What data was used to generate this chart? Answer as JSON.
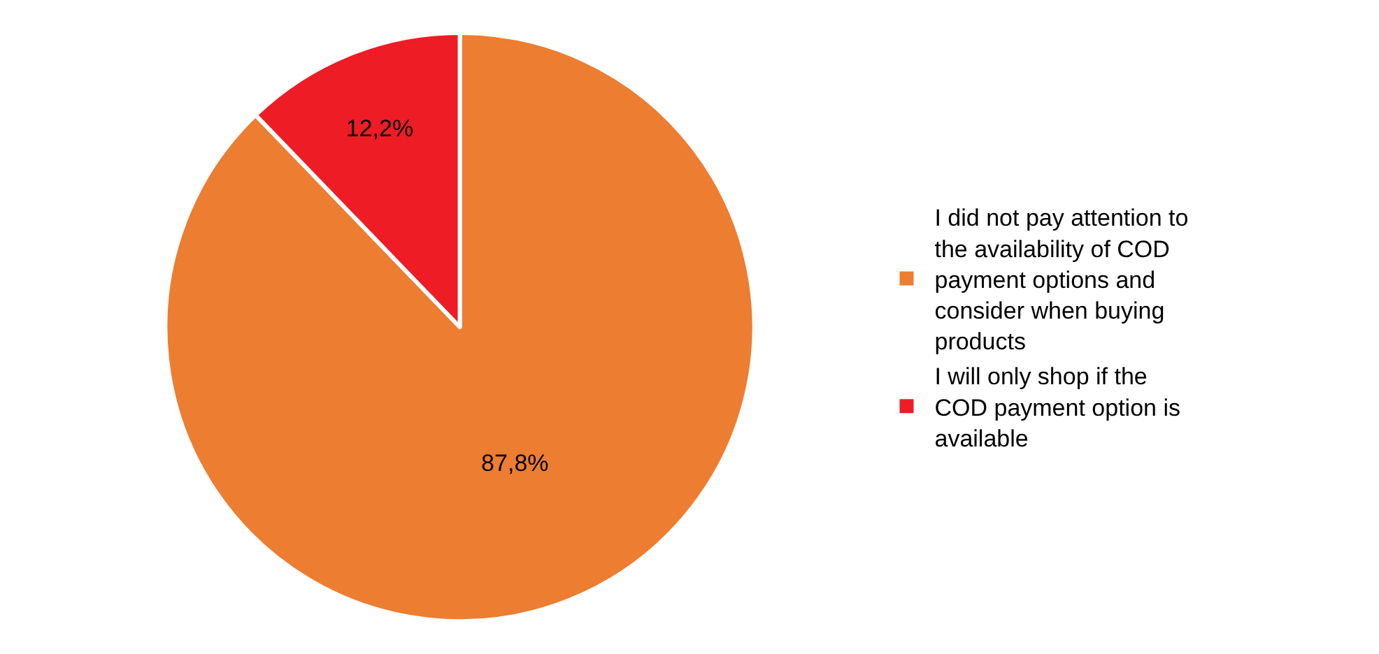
{
  "chart_data": {
    "type": "pie",
    "categories": [
      "I did not pay attention to the availability of COD payment options and consider when buying products",
      "I will only shop if the COD payment option is available"
    ],
    "values": [
      87.8,
      12.2
    ],
    "value_labels": [
      "87,8%",
      "12,2%"
    ],
    "colors": [
      "#ed7d31",
      "#ee1c25"
    ],
    "legend": "right"
  }
}
